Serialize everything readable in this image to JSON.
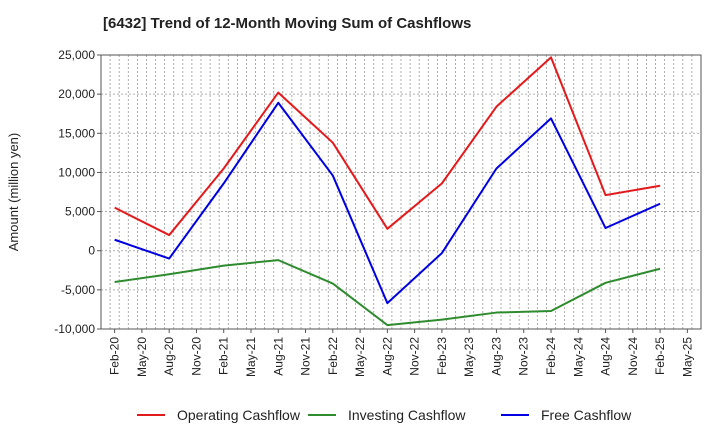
{
  "chart_data": {
    "type": "line",
    "title": "[6432]  Trend of 12-Month Moving Sum of Cashflows",
    "ylabel": "Amount (million yen)",
    "xlabel": "",
    "ylim": [
      -10000,
      25000
    ],
    "yticks": [
      -10000,
      -5000,
      0,
      5000,
      10000,
      15000,
      20000,
      25000
    ],
    "ytick_labels": [
      "-10,000",
      "-5,000",
      "0",
      "5,000",
      "10,000",
      "15,000",
      "20,000",
      "25,000"
    ],
    "xticks": [
      "Feb-20",
      "May-20",
      "Aug-20",
      "Nov-20",
      "Feb-21",
      "May-21",
      "Aug-21",
      "Nov-21",
      "Feb-22",
      "May-22",
      "Aug-22",
      "Nov-22",
      "Feb-23",
      "May-23",
      "Aug-23",
      "Nov-23",
      "Feb-24",
      "May-24",
      "Aug-24",
      "Nov-24",
      "Feb-25",
      "May-25"
    ],
    "x": [
      "Feb-20",
      "Aug-20",
      "Feb-21",
      "Aug-21",
      "Feb-22",
      "Aug-22",
      "Feb-23",
      "Aug-23",
      "Feb-24",
      "Aug-24",
      "Feb-25"
    ],
    "grid": true,
    "legend_position": "bottom",
    "series": [
      {
        "name": "Operating Cashflow",
        "color": "#e31a1c",
        "values": [
          5500,
          2000,
          10500,
          20200,
          13800,
          2800,
          8600,
          18400,
          24700,
          7100,
          8300
        ]
      },
      {
        "name": "Investing Cashflow",
        "color": "#2e8b2e",
        "values": [
          -4000,
          -3000,
          -1900,
          -1200,
          -4200,
          -9500,
          -8800,
          -7900,
          -7700,
          -4100,
          -2300
        ]
      },
      {
        "name": "Free Cashflow",
        "color": "#0000e0",
        "values": [
          1400,
          -1000,
          8600,
          18900,
          9600,
          -6700,
          -300,
          10500,
          16900,
          2900,
          6000
        ]
      }
    ]
  }
}
